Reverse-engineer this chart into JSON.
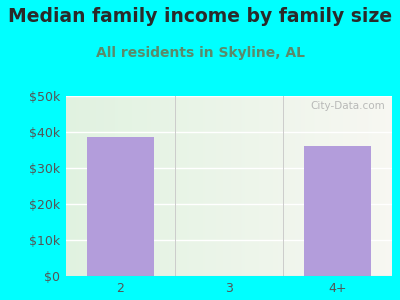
{
  "title": "Median family income by family size",
  "subtitle": "All residents in Skyline, AL",
  "categories": [
    "2",
    "3",
    "4+"
  ],
  "values": [
    38750,
    0,
    36250
  ],
  "bar_color": "#b39ddb",
  "background_color": "#00ffff",
  "title_color": "#2a2a2a",
  "subtitle_color": "#5a8a6a",
  "axis_label_color": "#555555",
  "ytick_labels": [
    "$0",
    "$10k",
    "$20k",
    "$30k",
    "$40k",
    "$50k"
  ],
  "ytick_values": [
    0,
    10000,
    20000,
    30000,
    40000,
    50000
  ],
  "ylim": [
    0,
    50000
  ],
  "title_fontsize": 13.5,
  "subtitle_fontsize": 10,
  "tick_fontsize": 9,
  "watermark": "City-Data.com"
}
